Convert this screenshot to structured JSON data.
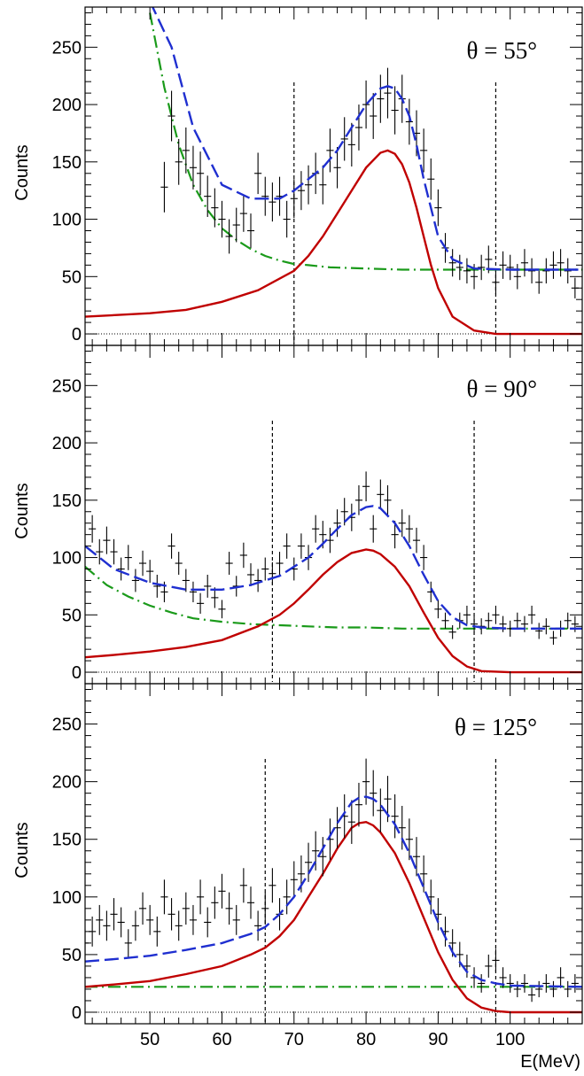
{
  "figure": {
    "ylabel": "Counts",
    "xlabel": "E(MeV)",
    "colors": {
      "data": "#000000",
      "total_fit": "#1f2fd0",
      "signal": "#c00000",
      "background": "#1a9a1a",
      "window": "#000000"
    }
  },
  "chart_data": [
    {
      "type": "line",
      "annotation": "θ = 55°",
      "xlim": [
        41,
        110
      ],
      "ylim": [
        -10,
        285
      ],
      "xticks": [
        50,
        60,
        70,
        80,
        90,
        100
      ],
      "yticks": [
        0,
        50,
        100,
        150,
        200,
        250
      ],
      "window": [
        70,
        98
      ],
      "total_fit": {
        "x": [
          50,
          53,
          56,
          60,
          64,
          68,
          70,
          72,
          74,
          76,
          78,
          80,
          82,
          83,
          84,
          85,
          86,
          87,
          88,
          90,
          92,
          95,
          100,
          110
        ],
        "y": [
          290,
          250,
          180,
          130,
          118,
          118,
          125,
          135,
          145,
          160,
          180,
          200,
          214,
          216,
          214,
          205,
          190,
          165,
          135,
          85,
          65,
          57,
          56,
          56
        ]
      },
      "signal": {
        "x": [
          41,
          50,
          55,
          60,
          65,
          70,
          72,
          74,
          76,
          78,
          80,
          82,
          83,
          84,
          85,
          86,
          87,
          88,
          89,
          90,
          92,
          95,
          98,
          110
        ],
        "y": [
          15,
          18,
          21,
          28,
          38,
          55,
          68,
          85,
          105,
          125,
          145,
          158,
          160,
          157,
          148,
          132,
          110,
          85,
          60,
          40,
          15,
          3,
          0,
          0
        ]
      },
      "background": {
        "x": [
          50,
          52,
          54,
          56,
          58,
          60,
          62,
          64,
          66,
          68,
          70,
          72,
          75,
          80,
          85,
          90,
          95,
          100,
          110
        ],
        "y": [
          280,
          215,
          165,
          130,
          108,
          92,
          82,
          74,
          68,
          64,
          61,
          60,
          58,
          57,
          56,
          56,
          56,
          56,
          56
        ]
      },
      "data": {
        "x": [
          52,
          53,
          54,
          55,
          56,
          57,
          58,
          59,
          60,
          61,
          62,
          63,
          64,
          65,
          66,
          67,
          68,
          69,
          70,
          71,
          72,
          73,
          74,
          75,
          76,
          77,
          78,
          79,
          80,
          81,
          82,
          83,
          84,
          85,
          86,
          87,
          88,
          89,
          90,
          91,
          92,
          93,
          94,
          95,
          96,
          97,
          98,
          99,
          100,
          101,
          102,
          103,
          104,
          105,
          106,
          107,
          108,
          109
        ],
        "y": [
          128,
          190,
          150,
          160,
          145,
          140,
          120,
          110,
          100,
          85,
          95,
          105,
          90,
          140,
          120,
          115,
          120,
          100,
          118,
          125,
          130,
          140,
          130,
          160,
          145,
          170,
          165,
          180,
          200,
          190,
          205,
          210,
          195,
          205,
          185,
          175,
          160,
          135,
          110,
          75,
          62,
          58,
          55,
          50,
          58,
          65,
          45,
          60,
          58,
          50,
          62,
          55,
          45,
          55,
          60,
          62,
          55,
          40
        ],
        "err": [
          22,
          22,
          20,
          20,
          19,
          19,
          18,
          17,
          16,
          15,
          15,
          16,
          15,
          18,
          17,
          17,
          17,
          16,
          17,
          17,
          17,
          18,
          17,
          19,
          18,
          19,
          19,
          20,
          21,
          20,
          21,
          22,
          21,
          21,
          20,
          20,
          19,
          18,
          16,
          13,
          12,
          11,
          11,
          11,
          11,
          12,
          10,
          12,
          11,
          11,
          12,
          11,
          10,
          11,
          12,
          12,
          11,
          9
        ]
      }
    },
    {
      "type": "line",
      "annotation": "θ = 90°",
      "xlim": [
        41,
        110
      ],
      "ylim": [
        -10,
        285
      ],
      "xticks": [
        50,
        60,
        70,
        80,
        90,
        100
      ],
      "yticks": [
        0,
        50,
        100,
        150,
        200,
        250
      ],
      "window": [
        67,
        95
      ],
      "total_fit": {
        "x": [
          41,
          45,
          50,
          55,
          60,
          64,
          68,
          70,
          72,
          74,
          76,
          78,
          80,
          81,
          82,
          84,
          86,
          88,
          90,
          92,
          94,
          96,
          100,
          110
        ],
        "y": [
          110,
          90,
          78,
          72,
          72,
          76,
          84,
          92,
          100,
          112,
          125,
          137,
          144,
          145,
          143,
          130,
          110,
          85,
          62,
          48,
          41,
          39,
          38,
          38
        ]
      },
      "signal": {
        "x": [
          41,
          45,
          50,
          55,
          60,
          65,
          68,
          70,
          72,
          74,
          76,
          78,
          80,
          81,
          82,
          84,
          86,
          88,
          90,
          92,
          94,
          96,
          100,
          110
        ],
        "y": [
          13,
          15,
          18,
          22,
          28,
          40,
          50,
          60,
          72,
          85,
          96,
          104,
          107,
          106,
          103,
          92,
          75,
          52,
          30,
          14,
          5,
          1,
          0,
          0
        ]
      },
      "background": {
        "x": [
          41,
          44,
          47,
          50,
          53,
          56,
          60,
          64,
          68,
          72,
          76,
          80,
          85,
          90,
          95,
          100,
          110
        ],
        "y": [
          92,
          76,
          66,
          58,
          52,
          47,
          44,
          42,
          41,
          40,
          39,
          39,
          38,
          38,
          38,
          38,
          38
        ]
      },
      "data": {
        "x": [
          41,
          42,
          43,
          44,
          45,
          46,
          47,
          48,
          49,
          50,
          51,
          52,
          53,
          54,
          55,
          56,
          57,
          58,
          59,
          60,
          61,
          62,
          63,
          64,
          65,
          66,
          67,
          68,
          69,
          70,
          71,
          72,
          73,
          74,
          75,
          76,
          77,
          78,
          79,
          80,
          81,
          82,
          83,
          84,
          85,
          86,
          87,
          88,
          89,
          90,
          91,
          92,
          93,
          94,
          95,
          96,
          97,
          98,
          99,
          100,
          101,
          102,
          103,
          104,
          105,
          106,
          107,
          108,
          109
        ],
        "y": [
          160,
          125,
          105,
          115,
          105,
          90,
          100,
          80,
          95,
          88,
          75,
          70,
          110,
          95,
          80,
          70,
          60,
          75,
          65,
          55,
          95,
          75,
          102,
          85,
          80,
          90,
          86,
          95,
          110,
          90,
          110,
          100,
          125,
          120,
          115,
          130,
          140,
          135,
          150,
          162,
          125,
          155,
          150,
          120,
          130,
          125,
          115,
          100,
          70,
          55,
          45,
          35,
          45,
          50,
          42,
          40,
          45,
          50,
          42,
          38,
          45,
          42,
          50,
          36,
          40,
          30,
          38,
          45,
          42
        ],
        "err": [
          13,
          12,
          11,
          12,
          11,
          10,
          11,
          10,
          11,
          10,
          10,
          9,
          11,
          10,
          10,
          9,
          9,
          10,
          9,
          8,
          10,
          9,
          11,
          10,
          10,
          10,
          10,
          10,
          11,
          10,
          11,
          11,
          12,
          12,
          11,
          12,
          12,
          12,
          13,
          13,
          12,
          13,
          13,
          12,
          12,
          12,
          11,
          11,
          9,
          8,
          7,
          6,
          7,
          8,
          7,
          7,
          7,
          8,
          7,
          7,
          7,
          7,
          8,
          7,
          7,
          6,
          7,
          7,
          7
        ]
      }
    },
    {
      "type": "line",
      "annotation": "θ = 125°",
      "xlim": [
        41,
        110
      ],
      "ylim": [
        -10,
        285
      ],
      "xticks": [
        50,
        60,
        70,
        80,
        90,
        100
      ],
      "yticks": [
        0,
        50,
        100,
        150,
        200,
        250
      ],
      "window": [
        66,
        98
      ],
      "total_fit": {
        "x": [
          41,
          45,
          50,
          55,
          60,
          64,
          66,
          68,
          70,
          72,
          74,
          76,
          78,
          79,
          80,
          81,
          82,
          84,
          86,
          88,
          90,
          92,
          94,
          96,
          98,
          100,
          110
        ],
        "y": [
          44,
          46,
          49,
          54,
          60,
          68,
          74,
          85,
          100,
          120,
          142,
          164,
          182,
          186,
          187,
          185,
          180,
          163,
          138,
          108,
          78,
          52,
          35,
          28,
          25,
          23,
          22
        ]
      },
      "signal": {
        "x": [
          41,
          45,
          50,
          55,
          60,
          64,
          66,
          68,
          70,
          72,
          74,
          76,
          78,
          79,
          80,
          81,
          82,
          84,
          86,
          88,
          90,
          92,
          94,
          96,
          98,
          100,
          110
        ],
        "y": [
          22,
          24,
          27,
          33,
          40,
          50,
          56,
          66,
          80,
          100,
          120,
          142,
          160,
          164,
          165,
          162,
          156,
          138,
          112,
          82,
          52,
          28,
          12,
          4,
          1,
          0,
          0
        ]
      },
      "background": {
        "x": [
          41,
          110
        ],
        "y": [
          22,
          22
        ]
      },
      "data": {
        "x": [
          41,
          42,
          43,
          44,
          45,
          46,
          47,
          48,
          49,
          50,
          51,
          52,
          53,
          54,
          55,
          56,
          57,
          58,
          59,
          60,
          61,
          62,
          63,
          64,
          65,
          66,
          67,
          68,
          69,
          70,
          71,
          72,
          73,
          74,
          75,
          76,
          77,
          78,
          79,
          80,
          81,
          82,
          83,
          84,
          85,
          86,
          87,
          88,
          89,
          90,
          91,
          92,
          93,
          94,
          95,
          96,
          97,
          98,
          99,
          100,
          101,
          102,
          103,
          104,
          105,
          106,
          107,
          108,
          109
        ],
        "y": [
          60,
          70,
          80,
          75,
          85,
          78,
          60,
          75,
          90,
          80,
          70,
          100,
          85,
          75,
          90,
          80,
          100,
          78,
          95,
          105,
          90,
          80,
          110,
          95,
          75,
          90,
          110,
          85,
          100,
          115,
          120,
          130,
          140,
          135,
          150,
          160,
          170,
          165,
          180,
          200,
          190,
          175,
          185,
          170,
          160,
          150,
          135,
          120,
          100,
          85,
          70,
          60,
          50,
          40,
          30,
          25,
          40,
          45,
          30,
          25,
          20,
          25,
          15,
          20,
          25,
          20,
          30,
          20,
          25
        ],
        "err": [
          12,
          13,
          13,
          13,
          14,
          13,
          12,
          13,
          14,
          13,
          13,
          15,
          14,
          13,
          14,
          13,
          15,
          13,
          14,
          15,
          14,
          13,
          15,
          14,
          13,
          14,
          15,
          14,
          15,
          16,
          16,
          17,
          17,
          17,
          18,
          18,
          19,
          19,
          19,
          20,
          20,
          19,
          20,
          19,
          19,
          18,
          17,
          16,
          15,
          14,
          13,
          12,
          11,
          10,
          9,
          8,
          10,
          10,
          9,
          8,
          7,
          8,
          6,
          7,
          8,
          7,
          9,
          7,
          8
        ]
      }
    }
  ]
}
